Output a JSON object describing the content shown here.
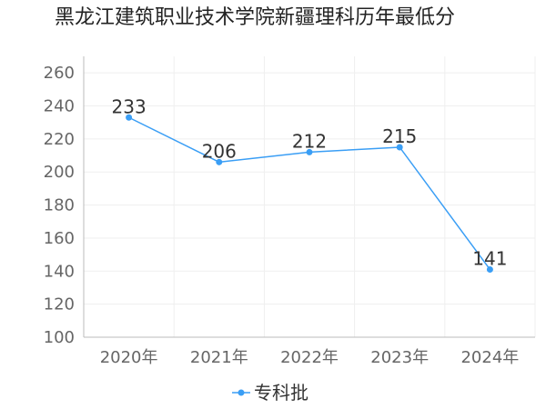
{
  "title": "黑龙江建筑职业技术学院新疆理科历年最低分",
  "colors": {
    "series": "#3a9ef5",
    "axis": "#bbbbbb",
    "grid": "#efefef",
    "tick_text": "#666666"
  },
  "chart_data": {
    "type": "line",
    "categories": [
      "2020年",
      "2021年",
      "2022年",
      "2023年",
      "2024年"
    ],
    "series": [
      {
        "name": "专科批",
        "values": [
          233,
          206,
          212,
          215,
          141
        ]
      }
    ],
    "y_ticks": [
      "100",
      "120",
      "140",
      "160",
      "180",
      "200",
      "220",
      "240",
      "260"
    ],
    "ylim": [
      100,
      270
    ],
    "grid": true,
    "legend_position": "bottom-center"
  }
}
